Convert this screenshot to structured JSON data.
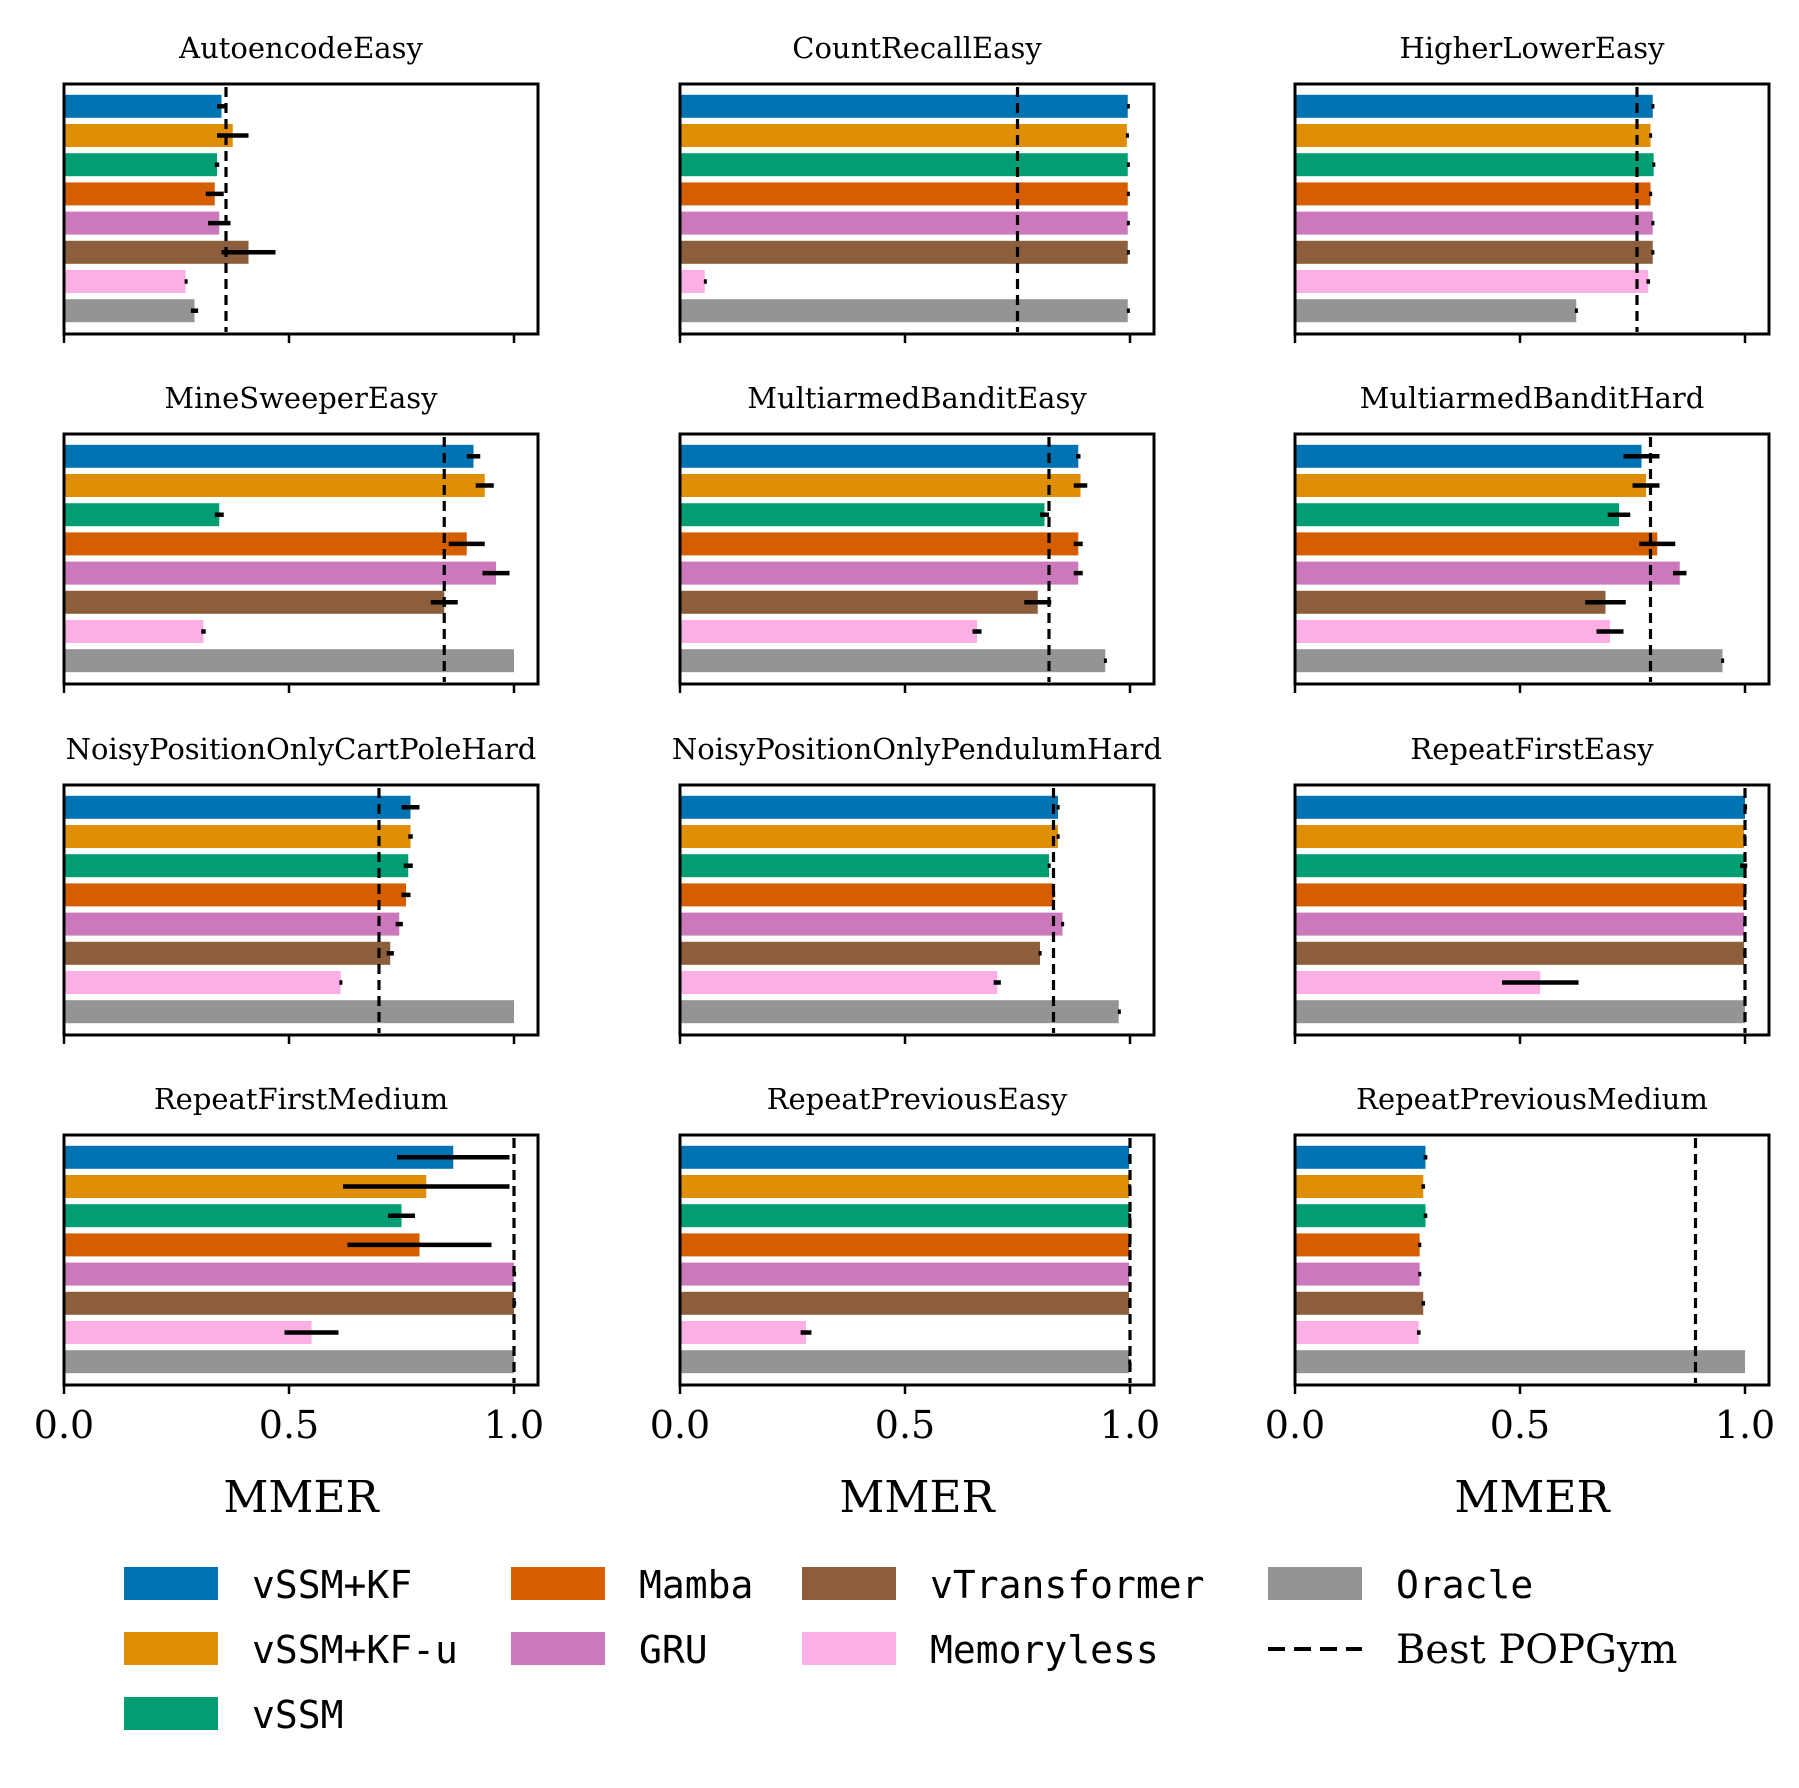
{
  "chart_data": {
    "type": "bar",
    "orientation": "horizontal",
    "xlabel": "MMER",
    "xlim": [
      0,
      1.05
    ],
    "xticks": [
      0.0,
      0.5,
      1.0
    ],
    "xtick_labels": [
      "0.0",
      "0.5",
      "1.0"
    ],
    "series_names": [
      "vSSM+KF",
      "vSSM+KF-u",
      "vSSM",
      "Mamba",
      "GRU",
      "vTransformer",
      "Memoryless",
      "Oracle"
    ],
    "colors": {
      "vSSM+KF": "#0173b2",
      "vSSM+KF-u": "#de8f05",
      "vSSM": "#029e73",
      "Mamba": "#d55e00",
      "GRU": "#cc78bc",
      "vTransformer": "#8c5e3c",
      "Memoryless": "#fbafe4",
      "Oracle": "#949494"
    },
    "reference_line_label": "Best POPGym",
    "panels": [
      {
        "title": "AutoencodeEasy",
        "values": [
          0.35,
          0.375,
          0.34,
          0.335,
          0.345,
          0.41,
          0.27,
          0.29
        ],
        "errors": [
          0.01,
          0.035,
          0.005,
          0.02,
          0.025,
          0.06,
          0.002,
          0.008
        ],
        "best_popgym": 0.36
      },
      {
        "title": "CountRecallEasy",
        "values": [
          0.995,
          0.993,
          0.995,
          0.995,
          0.995,
          0.995,
          0.055,
          0.995
        ],
        "errors": [
          0.002,
          0.002,
          0.002,
          0.002,
          0.002,
          0.002,
          0.002,
          0.002
        ],
        "best_popgym": 0.75
      },
      {
        "title": "HigherLowerEasy",
        "values": [
          0.795,
          0.79,
          0.797,
          0.79,
          0.795,
          0.795,
          0.785,
          0.625
        ],
        "errors": [
          0.003,
          0.003,
          0.003,
          0.003,
          0.003,
          0.003,
          0.004,
          0.003
        ],
        "best_popgym": 0.76
      },
      {
        "title": "MineSweeperEasy",
        "values": [
          0.91,
          0.935,
          0.345,
          0.895,
          0.96,
          0.845,
          0.31,
          1.0
        ],
        "errors": [
          0.015,
          0.02,
          0.01,
          0.04,
          0.03,
          0.03,
          0.005,
          0.0
        ],
        "best_popgym": 0.845
      },
      {
        "title": "MultiarmedBanditEasy",
        "values": [
          0.885,
          0.89,
          0.81,
          0.885,
          0.885,
          0.795,
          0.66,
          0.945
        ],
        "errors": [
          0.005,
          0.015,
          0.01,
          0.01,
          0.01,
          0.03,
          0.01,
          0.003
        ],
        "best_popgym": 0.82
      },
      {
        "title": "MultiarmedBanditHard",
        "values": [
          0.77,
          0.78,
          0.72,
          0.805,
          0.855,
          0.69,
          0.7,
          0.95
        ],
        "errors": [
          0.04,
          0.03,
          0.025,
          0.04,
          0.015,
          0.045,
          0.03,
          0.003
        ],
        "best_popgym": 0.79
      },
      {
        "title": "NoisyPositionOnlyCartPoleHard",
        "values": [
          0.77,
          0.77,
          0.765,
          0.76,
          0.745,
          0.725,
          0.615,
          1.0
        ],
        "errors": [
          0.02,
          0.005,
          0.01,
          0.01,
          0.008,
          0.008,
          0.003,
          0.0
        ],
        "best_popgym": 0.7
      },
      {
        "title": "NoisyPositionOnlyPendulumHard",
        "values": [
          0.84,
          0.84,
          0.82,
          0.83,
          0.85,
          0.8,
          0.705,
          0.975
        ],
        "errors": [
          0.003,
          0.003,
          0.003,
          0.003,
          0.003,
          0.003,
          0.008,
          0.002
        ],
        "best_popgym": 0.83
      },
      {
        "title": "RepeatFirstEasy",
        "values": [
          1.0,
          0.998,
          0.997,
          0.998,
          0.998,
          0.998,
          0.545,
          1.0
        ],
        "errors": [
          0.002,
          0.002,
          0.008,
          0.002,
          0.002,
          0.002,
          0.085,
          0.0
        ],
        "best_popgym": 1.0
      },
      {
        "title": "RepeatFirstMedium",
        "values": [
          0.865,
          0.805,
          0.75,
          0.79,
          1.0,
          1.0,
          0.55,
          1.0
        ],
        "errors": [
          0.125,
          0.185,
          0.03,
          0.16,
          0.002,
          0.002,
          0.06,
          0.0
        ],
        "best_popgym": 1.0
      },
      {
        "title": "RepeatPreviousEasy",
        "values": [
          0.998,
          0.998,
          0.998,
          0.998,
          0.998,
          0.998,
          0.28,
          0.998
        ],
        "errors": [
          0.002,
          0.002,
          0.002,
          0.002,
          0.002,
          0.002,
          0.012,
          0.002
        ],
        "best_popgym": 1.0
      },
      {
        "title": "RepeatPreviousMedium",
        "values": [
          0.29,
          0.285,
          0.29,
          0.277,
          0.277,
          0.285,
          0.275,
          1.0
        ],
        "errors": [
          0.004,
          0.004,
          0.004,
          0.003,
          0.003,
          0.004,
          0.004,
          0.0
        ],
        "best_popgym": 0.89
      }
    ]
  }
}
